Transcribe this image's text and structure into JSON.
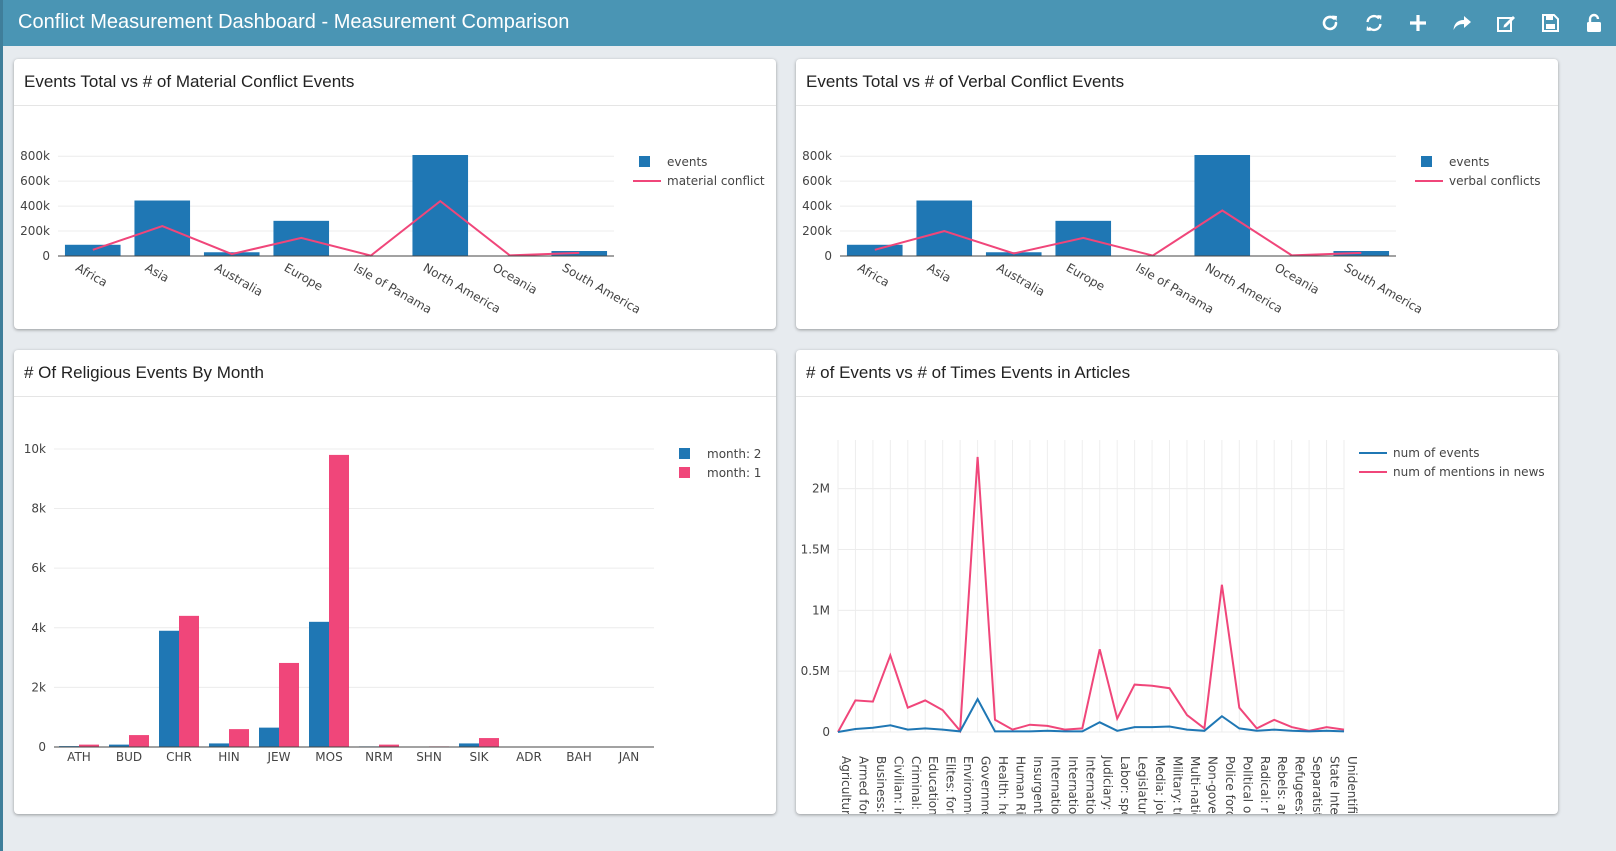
{
  "header": {
    "title": "Conflict Measurement Dashboard - Measurement Comparison",
    "buttons": [
      {
        "name": "reload-icon"
      },
      {
        "name": "refresh-icon"
      },
      {
        "name": "add-icon"
      },
      {
        "name": "share-icon"
      },
      {
        "name": "edit-icon"
      },
      {
        "name": "save-icon"
      },
      {
        "name": "unlock-icon"
      }
    ]
  },
  "panels": {
    "p1": {
      "title": "Events Total vs # of Material Conflict Events"
    },
    "p2": {
      "title": "Events Total vs # of Verbal Conflict Events"
    },
    "p3": {
      "title": "# Of Religious Events By Month"
    },
    "p4": {
      "title": "# of Events vs # of Times Events in Articles"
    }
  },
  "colors": {
    "blue": "#1f77b4",
    "pink": "#f0467a",
    "grid": "#ececec"
  },
  "chart_data": [
    {
      "type": "bar",
      "categories": [
        "Africa",
        "Asia",
        "Australia",
        "Europe",
        "Isle of Panama",
        "North America",
        "Oceania",
        "South America"
      ],
      "series": [
        {
          "name": "events",
          "type": "bar",
          "values": [
            90000,
            445000,
            30000,
            282000,
            2000,
            810000,
            3000,
            40000
          ]
        },
        {
          "name": "material conflict",
          "type": "line",
          "values": [
            50000,
            240000,
            15000,
            145000,
            3000,
            440000,
            5000,
            25000
          ]
        }
      ],
      "yticks": [
        0,
        200000,
        400000,
        600000,
        800000
      ],
      "ytick_labels": [
        "0",
        "200k",
        "400k",
        "600k",
        "800k"
      ],
      "ylim": [
        0,
        810000
      ],
      "legend": "top-right"
    },
    {
      "type": "bar",
      "categories": [
        "Africa",
        "Asia",
        "Australia",
        "Europe",
        "Isle of Panama",
        "North America",
        "Oceania",
        "South America"
      ],
      "series": [
        {
          "name": "events",
          "type": "bar",
          "values": [
            90000,
            445000,
            30000,
            282000,
            2000,
            810000,
            3000,
            40000
          ]
        },
        {
          "name": "verbal conflicts",
          "type": "line",
          "values": [
            50000,
            200000,
            20000,
            145000,
            3000,
            365000,
            5000,
            25000
          ]
        }
      ],
      "yticks": [
        0,
        200000,
        400000,
        600000,
        800000
      ],
      "ytick_labels": [
        "0",
        "200k",
        "400k",
        "600k",
        "800k"
      ],
      "ylim": [
        0,
        810000
      ],
      "legend": "top-right"
    },
    {
      "type": "bar",
      "categories": [
        "ATH",
        "BUD",
        "CHR",
        "HIN",
        "JEW",
        "MOS",
        "NRM",
        "SHN",
        "SIK",
        "ADR",
        "BAH",
        "JAN"
      ],
      "series": [
        {
          "name": "month: 2",
          "values": [
            30,
            80,
            3900,
            120,
            650,
            4200,
            20,
            10,
            120,
            10,
            5,
            5
          ]
        },
        {
          "name": "month: 1",
          "values": [
            80,
            400,
            4400,
            600,
            2820,
            9800,
            80,
            20,
            300,
            15,
            10,
            10
          ]
        }
      ],
      "yticks": [
        0,
        2000,
        4000,
        6000,
        8000,
        10000
      ],
      "ytick_labels": [
        "0",
        "2k",
        "4k",
        "6k",
        "8k",
        "10k"
      ],
      "ylim": [
        0,
        10300
      ],
      "legend": "top-right"
    },
    {
      "type": "line",
      "categories": [
        "Agriculture: a",
        "Armed forces:",
        "Business: bus",
        "Civilian: ind",
        "Criminal: i",
        "Education: e",
        "Elites: form",
        "Environmental",
        "Government:",
        "Health: hea",
        "Human Rights",
        "Insurgents:",
        "International",
        "International",
        "International",
        "Judiciary: j",
        "Labor: spe",
        "Legislature:",
        "Media: jou",
        "Military: tr",
        "Multi-national",
        "Non-govern",
        "Police forc",
        "Political op",
        "Radical: r",
        "Rebels: ar",
        "Refugees:",
        "Separatist",
        "State Intel",
        "Unidentified"
      ],
      "series": [
        {
          "name": "num of events",
          "values": [
            0,
            25000,
            35000,
            55000,
            20000,
            30000,
            20000,
            5000,
            270000,
            5000,
            5000,
            5000,
            10000,
            5000,
            5000,
            80000,
            10000,
            40000,
            40000,
            45000,
            20000,
            10000,
            130000,
            30000,
            10000,
            20000,
            10000,
            5000,
            10000,
            5000
          ]
        },
        {
          "name": "num of mentions in news",
          "values": [
            0,
            260000,
            250000,
            630000,
            200000,
            260000,
            180000,
            10000,
            2260000,
            100000,
            20000,
            60000,
            50000,
            20000,
            30000,
            680000,
            110000,
            390000,
            380000,
            360000,
            140000,
            30000,
            1210000,
            200000,
            30000,
            100000,
            40000,
            10000,
            40000,
            20000
          ]
        }
      ],
      "yticks": [
        0,
        500000,
        1000000,
        1500000,
        2000000
      ],
      "ytick_labels": [
        "0",
        "0.5M",
        "1M",
        "1.5M",
        "2M"
      ],
      "ylim": [
        0,
        2400000
      ],
      "legend": "top-right"
    }
  ]
}
